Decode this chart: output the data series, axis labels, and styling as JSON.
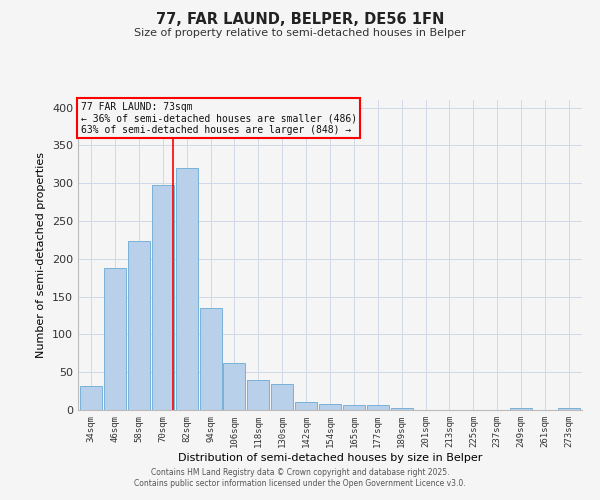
{
  "title": "77, FAR LAUND, BELPER, DE56 1FN",
  "subtitle": "Size of property relative to semi-detached houses in Belper",
  "xlabel": "Distribution of semi-detached houses by size in Belper",
  "ylabel": "Number of semi-detached properties",
  "categories": [
    "34sqm",
    "46sqm",
    "58sqm",
    "70sqm",
    "82sqm",
    "94sqm",
    "106sqm",
    "118sqm",
    "130sqm",
    "142sqm",
    "154sqm",
    "165sqm",
    "177sqm",
    "189sqm",
    "201sqm",
    "213sqm",
    "225sqm",
    "237sqm",
    "249sqm",
    "261sqm",
    "273sqm"
  ],
  "values": [
    32,
    188,
    224,
    297,
    320,
    135,
    62,
    40,
    34,
    11,
    8,
    6,
    6,
    3,
    0,
    0,
    0,
    0,
    3,
    0,
    2
  ],
  "bar_color": "#b8d0ea",
  "bar_edge_color": "#6aaad4",
  "vline_x": 3.42,
  "vline_color": "red",
  "annotation_title": "77 FAR LAUND: 73sqm",
  "annotation_line1": "← 36% of semi-detached houses are smaller (486)",
  "annotation_line2": "63% of semi-detached houses are larger (848) →",
  "annotation_box_color": "red",
  "ylim": [
    0,
    410
  ],
  "yticks": [
    0,
    50,
    100,
    150,
    200,
    250,
    300,
    350,
    400
  ],
  "footer1": "Contains HM Land Registry data © Crown copyright and database right 2025.",
  "footer2": "Contains public sector information licensed under the Open Government Licence v3.0.",
  "bg_color": "#f5f5f5",
  "grid_color": "#d0d8e8"
}
